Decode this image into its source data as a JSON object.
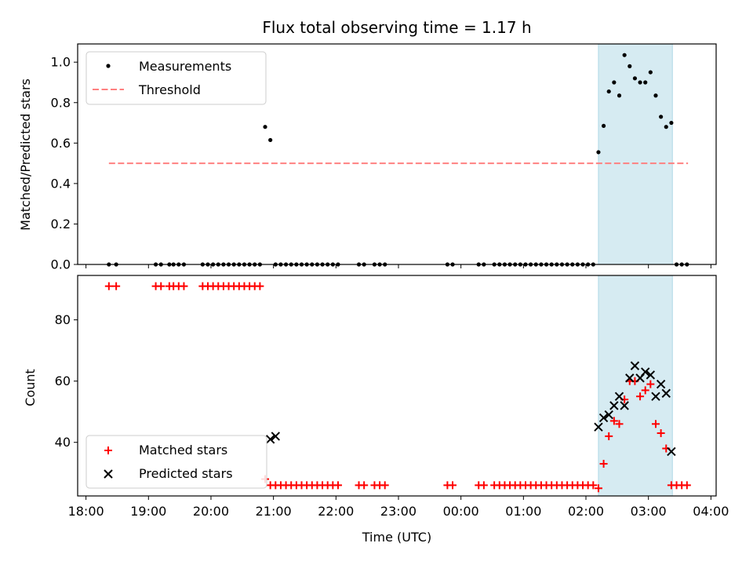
{
  "chart_data": [
    {
      "type": "scatter",
      "title": "Flux total observing time = 1.17 h",
      "ylabel": "Matched/Predicted stars",
      "xlim": [
        "17:52",
        "04:05"
      ],
      "ylim": [
        0,
        1.09
      ],
      "yticks": [
        "0.0",
        "0.2",
        "0.4",
        "0.6",
        "0.8",
        "1.0"
      ],
      "legend": "top-left",
      "shaded_span": [
        "02:12",
        "03:23"
      ],
      "threshold": {
        "name": "Threshold",
        "value": 0.5,
        "x_range": [
          "18:22",
          "03:38"
        ],
        "color": "#ff8080"
      },
      "series": [
        {
          "name": "Measurements",
          "color": "#000000",
          "x": [
            "18:22",
            "18:29",
            "19:07",
            "19:12",
            "19:20",
            "19:24",
            "19:29",
            "19:34",
            "19:52",
            "19:57",
            "20:02",
            "20:07",
            "20:12",
            "20:17",
            "20:22",
            "20:27",
            "20:32",
            "20:37",
            "20:42",
            "20:47",
            "20:52",
            "20:57",
            "21:02",
            "21:07",
            "21:12",
            "21:17",
            "21:22",
            "21:27",
            "21:32",
            "21:37",
            "21:42",
            "21:47",
            "21:52",
            "21:57",
            "22:02",
            "22:22",
            "22:27",
            "22:37",
            "22:42",
            "22:47",
            "23:47",
            "23:52",
            "00:17",
            "00:22",
            "00:32",
            "00:37",
            "00:42",
            "00:47",
            "00:52",
            "00:57",
            "01:02",
            "01:07",
            "01:12",
            "01:17",
            "01:22",
            "01:27",
            "01:32",
            "01:37",
            "01:42",
            "01:47",
            "01:52",
            "01:57",
            "02:02",
            "02:07",
            "02:12",
            "02:17",
            "02:22",
            "02:27",
            "02:32",
            "02:37",
            "02:42",
            "02:47",
            "02:52",
            "02:57",
            "03:02",
            "03:07",
            "03:12",
            "03:17",
            "03:22",
            "03:27",
            "03:32",
            "03:37"
          ],
          "y": [
            0,
            0,
            0,
            0,
            0,
            0,
            0,
            0,
            0,
            0,
            0,
            0,
            0,
            0,
            0,
            0,
            0,
            0,
            0,
            0,
            0.68,
            0.615,
            0,
            0,
            0,
            0,
            0,
            0,
            0,
            0,
            0,
            0,
            0,
            0,
            0,
            0,
            0,
            0,
            0,
            0,
            0,
            0,
            0,
            0,
            0,
            0,
            0,
            0,
            0,
            0,
            0,
            0,
            0,
            0,
            0,
            0,
            0,
            0,
            0,
            0,
            0,
            0,
            0,
            0,
            0.555,
            0.685,
            0.855,
            0.9,
            0.835,
            1.035,
            0.98,
            0.92,
            0.9,
            0.9,
            0.95,
            0.835,
            0.73,
            0.68,
            0.7,
            0,
            0,
            0
          ]
        }
      ]
    },
    {
      "type": "scatter",
      "xlabel": "Time (UTC)",
      "ylabel": "Count",
      "xlim": [
        "17:52",
        "04:05"
      ],
      "ylim": [
        22.5,
        94.5
      ],
      "yticks": [
        "40",
        "60",
        "80"
      ],
      "xticks": [
        "18:00",
        "19:00",
        "20:00",
        "21:00",
        "22:00",
        "23:00",
        "00:00",
        "01:00",
        "02:00",
        "03:00",
        "04:00"
      ],
      "legend": "bottom-left",
      "shaded_span": [
        "02:12",
        "03:23"
      ],
      "series": [
        {
          "name": "Matched stars",
          "color": "#ff0000",
          "marker": "+",
          "x": [
            "18:22",
            "18:29",
            "19:07",
            "19:12",
            "19:20",
            "19:24",
            "19:29",
            "19:34",
            "19:52",
            "19:57",
            "20:02",
            "20:07",
            "20:12",
            "20:17",
            "20:22",
            "20:27",
            "20:32",
            "20:37",
            "20:42",
            "20:47",
            "20:52",
            "20:57",
            "21:02",
            "21:07",
            "21:12",
            "21:17",
            "21:22",
            "21:27",
            "21:32",
            "21:37",
            "21:42",
            "21:47",
            "21:52",
            "21:57",
            "22:02",
            "22:22",
            "22:27",
            "22:37",
            "22:42",
            "22:47",
            "23:47",
            "23:52",
            "00:17",
            "00:22",
            "00:32",
            "00:37",
            "00:42",
            "00:47",
            "00:52",
            "00:57",
            "01:02",
            "01:07",
            "01:12",
            "01:17",
            "01:22",
            "01:27",
            "01:32",
            "01:37",
            "01:42",
            "01:47",
            "01:52",
            "01:57",
            "02:02",
            "02:07",
            "02:12",
            "02:17",
            "02:22",
            "02:27",
            "02:32",
            "02:37",
            "02:42",
            "02:47",
            "02:52",
            "02:57",
            "03:02",
            "03:07",
            "03:12",
            "03:17",
            "03:22",
            "03:27",
            "03:32",
            "03:37"
          ],
          "y": [
            91,
            91,
            91,
            91,
            91,
            91,
            91,
            91,
            91,
            91,
            91,
            91,
            91,
            91,
            91,
            91,
            91,
            91,
            91,
            91,
            28,
            26,
            26,
            26,
            26,
            26,
            26,
            26,
            26,
            26,
            26,
            26,
            26,
            26,
            26,
            26,
            26,
            26,
            26,
            26,
            26,
            26,
            26,
            26,
            26,
            26,
            26,
            26,
            26,
            26,
            26,
            26,
            26,
            26,
            26,
            26,
            26,
            26,
            26,
            26,
            26,
            26,
            26,
            26,
            25,
            33,
            42,
            47,
            46,
            54,
            60,
            60,
            55,
            57,
            59,
            46,
            43,
            38,
            26,
            26,
            26,
            26
          ]
        },
        {
          "name": "Predicted stars",
          "color": "#000000",
          "marker": "x",
          "x": [
            "20:57",
            "21:02",
            "02:12",
            "02:17",
            "02:22",
            "02:27",
            "02:32",
            "02:37",
            "02:42",
            "02:47",
            "02:52",
            "02:57",
            "03:02",
            "03:07",
            "03:12",
            "03:17",
            "03:22"
          ],
          "y": [
            41,
            42,
            45,
            48,
            49,
            52,
            55,
            52,
            61,
            65,
            61,
            63,
            62,
            55,
            59,
            56,
            37
          ]
        }
      ]
    }
  ]
}
